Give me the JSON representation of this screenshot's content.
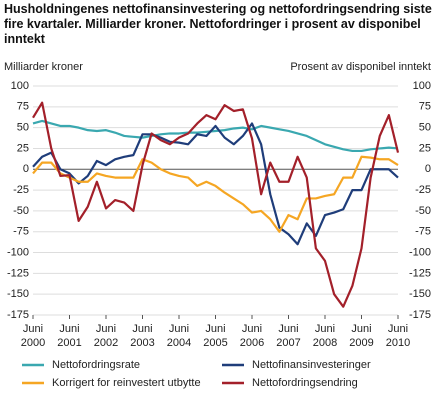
{
  "chart_data": {
    "type": "line",
    "title": "Husholdningenes nettofinansinvestering og nettofordringsendring siste fire kvartaler. Milliarder kroner. Nettofordringer i prosent av disponibel inntekt",
    "y_label": "Milliarder kroner",
    "y2_label": "Prosent av disponibel inntekt",
    "categories": [
      "Juni 2000",
      null,
      null,
      null,
      "Juni 2001",
      null,
      null,
      null,
      "Juni 2002",
      null,
      null,
      null,
      "Juni 2003",
      null,
      null,
      null,
      "Juni 2004",
      null,
      null,
      null,
      "Juni 2005",
      null,
      null,
      null,
      "Juni 2006",
      null,
      null,
      null,
      "Juni 2007",
      null,
      null,
      null,
      "Juni 2008",
      null,
      null,
      null,
      "Juni 2009",
      null,
      null,
      null,
      "Juni 2010"
    ],
    "ylim": [
      -175,
      100
    ],
    "yticks": [
      -175,
      -150,
      -125,
      -100,
      -75,
      -50,
      -25,
      0,
      25,
      50,
      75,
      100
    ],
    "y2lim": [
      -175,
      100
    ],
    "y2ticks": [
      -175,
      -150,
      -125,
      -100,
      -75,
      -50,
      -25,
      0,
      25,
      50,
      75,
      100
    ],
    "grid": true,
    "series": [
      {
        "name": "Nettofordringsrate",
        "color": "#3aa8b0",
        "axis": "y2",
        "values": [
          55,
          58,
          55,
          52,
          52,
          50,
          47,
          46,
          47,
          44,
          40,
          39,
          38,
          40,
          42,
          43,
          43,
          44,
          44,
          45,
          46,
          47,
          49,
          50,
          48,
          52,
          50,
          48,
          46,
          43,
          40,
          35,
          30,
          27,
          24,
          22,
          22,
          24,
          25,
          26,
          25
        ]
      },
      {
        "name": "Nettofinansinvesteringer",
        "color": "#1f3d7a",
        "values": [
          3,
          15,
          20,
          0,
          -5,
          -17,
          -8,
          10,
          5,
          12,
          15,
          17,
          42,
          42,
          38,
          33,
          32,
          30,
          42,
          40,
          52,
          38,
          30,
          40,
          55,
          30,
          -30,
          -70,
          -78,
          -90,
          -65,
          -80,
          -55,
          -52,
          -48,
          -25,
          -25,
          0,
          0,
          0,
          -10
        ]
      },
      {
        "name": "Korrigert for reinvestert utbytte",
        "color": "#f5a623",
        "values": [
          -5,
          8,
          8,
          -5,
          -10,
          -15,
          -15,
          -5,
          -8,
          -10,
          -10,
          -10,
          12,
          8,
          0,
          -5,
          -8,
          -10,
          -20,
          -15,
          -20,
          -28,
          -35,
          -42,
          -52,
          -50,
          -60,
          -75,
          -55,
          -60,
          -35,
          -35,
          -32,
          -30,
          -10,
          -10,
          15,
          14,
          12,
          12,
          5
        ]
      },
      {
        "name": "Nettofordringsendring",
        "color": "#a3202a",
        "values": [
          62,
          80,
          25,
          -8,
          -7,
          -62,
          -45,
          -15,
          -47,
          -37,
          -40,
          -50,
          5,
          43,
          35,
          30,
          38,
          43,
          55,
          65,
          60,
          77,
          70,
          72,
          37,
          -30,
          8,
          -15,
          -15,
          15,
          -10,
          -95,
          -110,
          -150,
          -165,
          -140,
          -95,
          -10,
          40,
          65,
          20
        ]
      }
    ]
  }
}
